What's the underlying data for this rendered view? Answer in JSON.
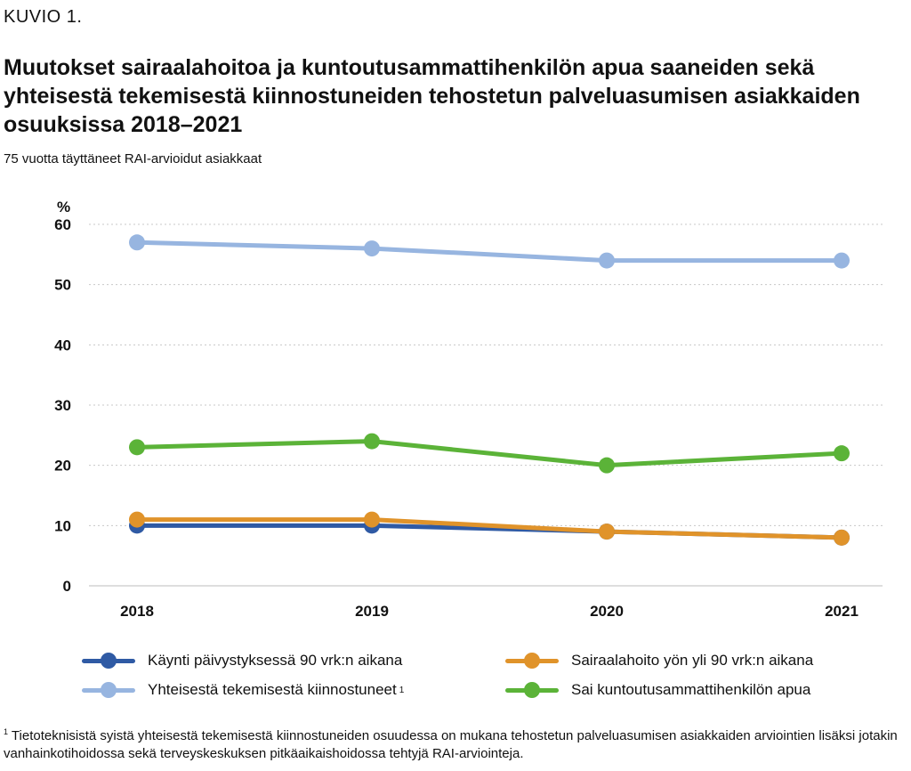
{
  "figure_label": "KUVIO 1.",
  "title": "Muutokset sairaalahoitoa ja kuntoutusammattihenkilön apua saaneiden sekä yhteisestä tekemisestä kiinnostuneiden tehostetun palveluasumisen asiakkaiden osuuksissa 2018–2021",
  "subtitle": "75 vuotta täyttäneet RAI-arvioidut asiakkaat",
  "chart_data": {
    "type": "line",
    "y_unit_label": "%",
    "categories": [
      "2018",
      "2019",
      "2020",
      "2021"
    ],
    "ylim": [
      0,
      60
    ],
    "yticks": [
      0,
      10,
      20,
      30,
      40,
      50,
      60
    ],
    "grid": true,
    "legend_position": "bottom",
    "series": [
      {
        "name": "Yhteisestä tekemisestä kiinnostuneet",
        "note": "1",
        "color": "#97b5e0",
        "values": [
          57,
          56,
          54,
          54
        ]
      },
      {
        "name": "Sai kuntoutusammattihenkilön apua",
        "color": "#5bb338",
        "values": [
          23,
          24,
          20,
          22
        ]
      },
      {
        "name": "Käynti päivystyksessä 90 vrk:n aikana",
        "color": "#2f5aa4",
        "values": [
          10,
          10,
          9,
          8
        ]
      },
      {
        "name": "Sairaalahoito yön yli 90 vrk:n aikana",
        "color": "#e0932a",
        "values": [
          11,
          11,
          9,
          8
        ]
      }
    ]
  },
  "footnote": {
    "marker": "1",
    "text": "Tietoteknisistä syistä yhteisestä tekemisestä kiinnostuneiden osuudessa on mukana tehostetun palveluasumisen asiakkaiden arviointien lisäksi jotakin vanhainkotihoidossa sekä terveyskeskuksen pitkäaikaishoidossa tehtyjä RAI-arviointeja."
  }
}
